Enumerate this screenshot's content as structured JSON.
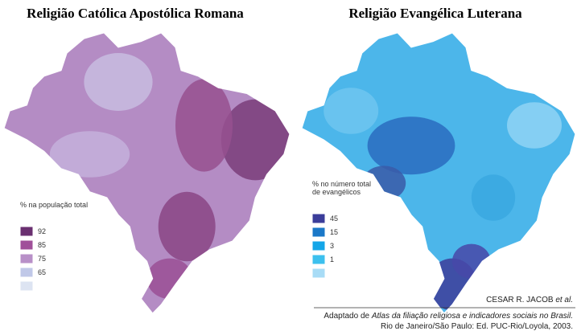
{
  "maps": [
    {
      "title": "Religião Católica Apostólica Romana",
      "legend": {
        "title": [
          "% na população total"
        ],
        "labels": [
          92,
          85,
          75,
          65
        ]
      }
    },
    {
      "title": "Religião Evangélica Luterana",
      "legend": {
        "title": [
          "% no número total",
          "de evangélicos"
        ],
        "labels": [
          45,
          15,
          3,
          1
        ]
      }
    }
  ],
  "credit": {
    "author": "CESAR R. JACOB",
    "author_italic": "et al.",
    "line1_prefix": "Adaptado de",
    "line1_italic": "Atlas da filiação religiosa e indicadores sociais no Brasil.",
    "line2": "Rio de Janeiro/São Paulo: Ed. PUC-Rio/Loyola, 2003."
  }
}
